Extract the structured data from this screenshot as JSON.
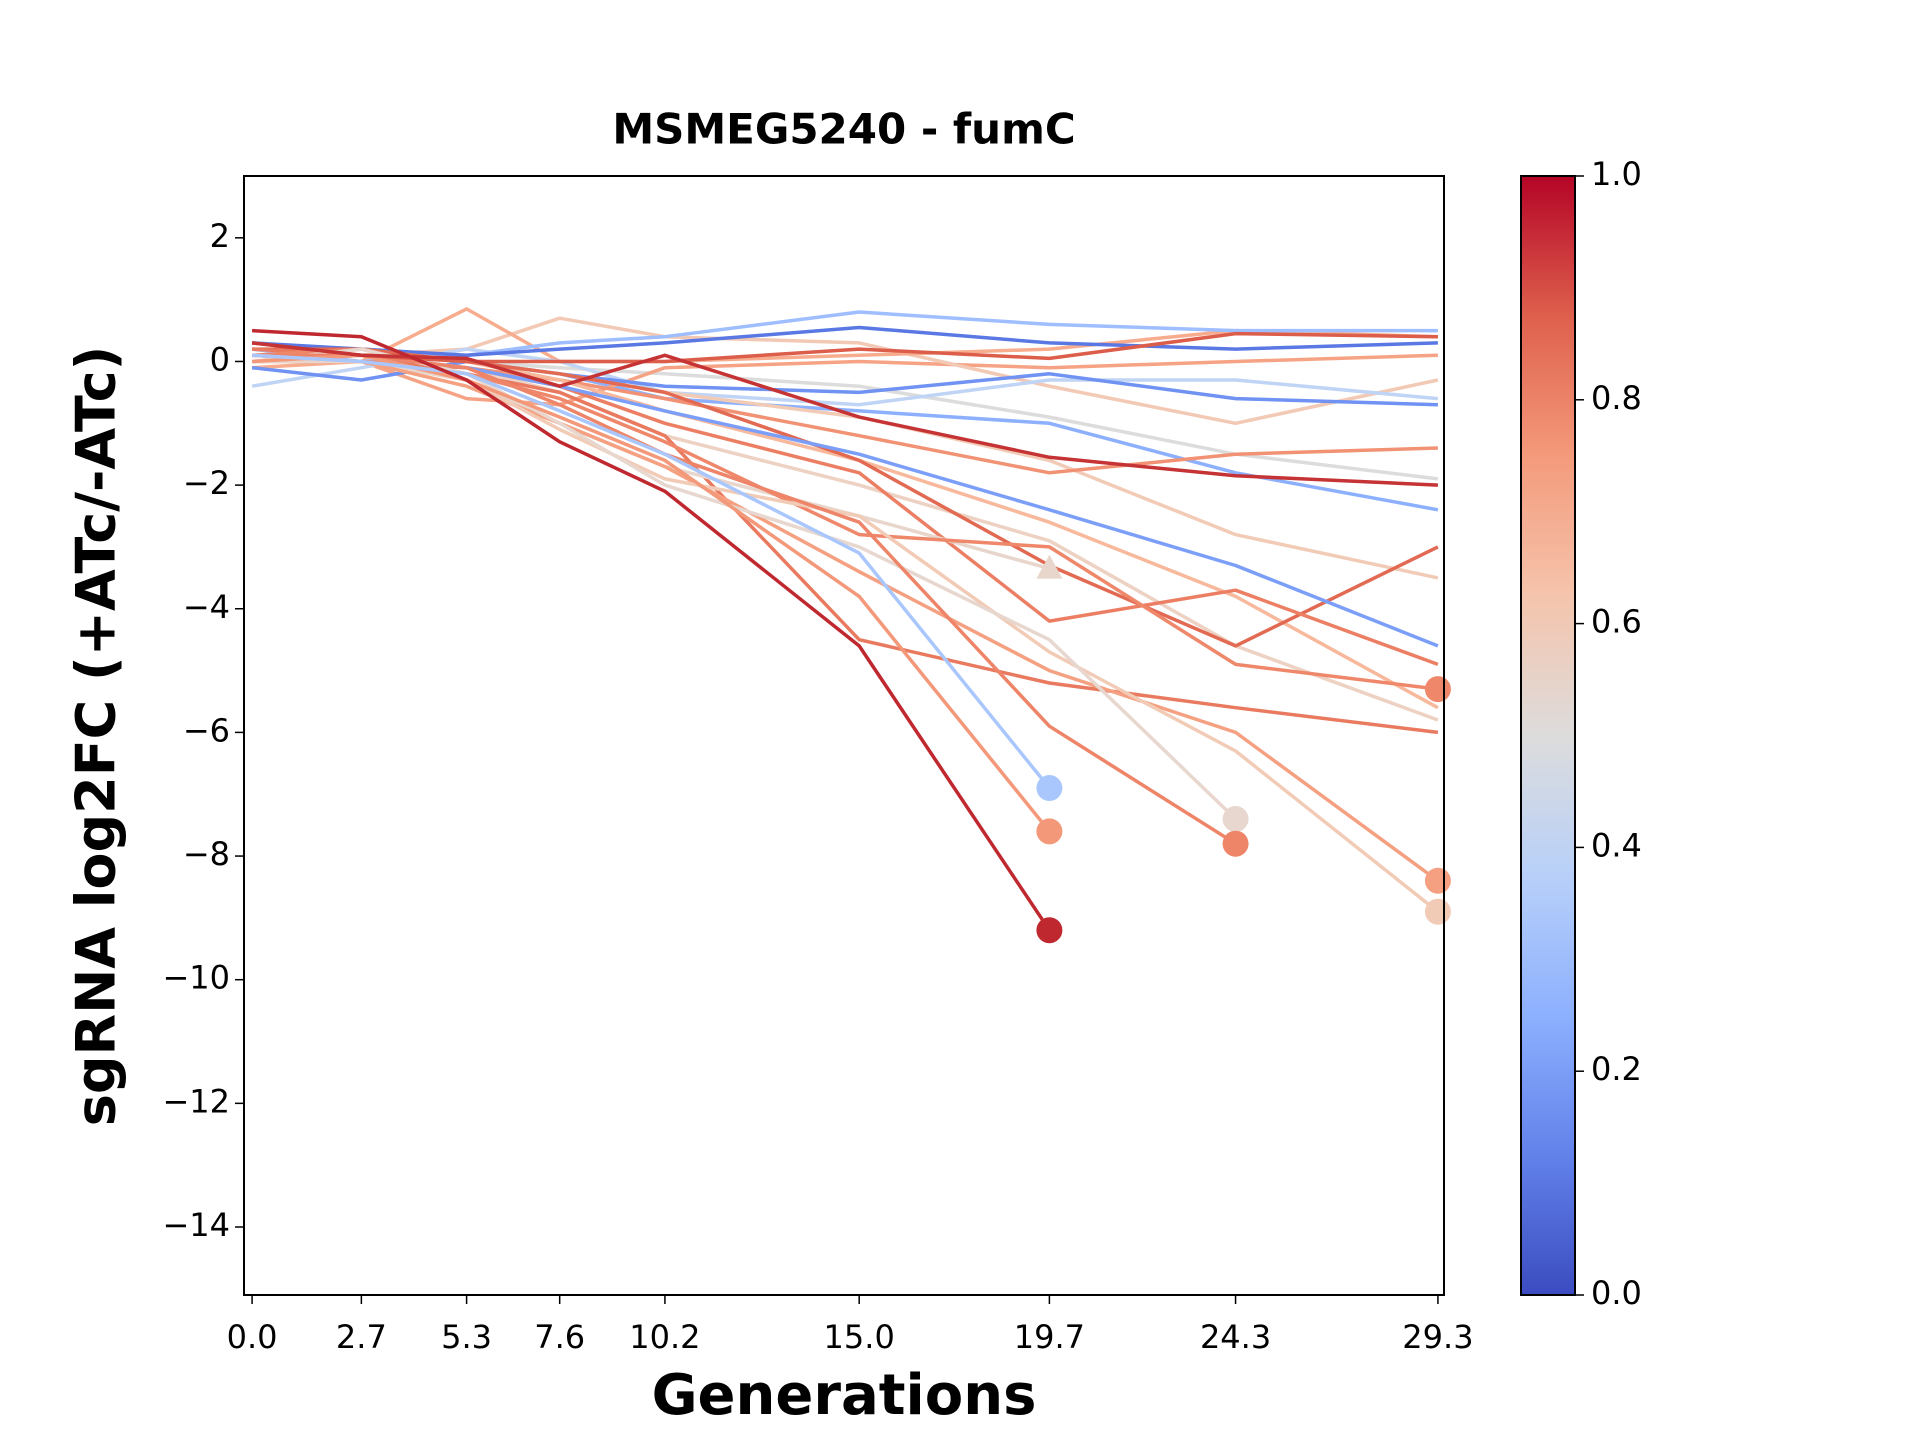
{
  "chart_data": {
    "type": "line",
    "title": "MSMEG5240 - fumC",
    "xlabel": "Generations",
    "ylabel": "sgRNA log2FC (+ATc/-ATc)",
    "x": [
      0,
      2.7,
      5.3,
      7.6,
      10.2,
      15.0,
      19.7,
      24.3,
      29.3
    ],
    "xlim": [
      -0.2,
      29.45
    ],
    "xticks": [
      {
        "value": 0,
        "label": "0.0"
      },
      2.7,
      5.3,
      7.6,
      10.2,
      {
        "value": 15,
        "label": "15.0"
      },
      19.7,
      24.3,
      29.3
    ],
    "ylim": [
      -15.1,
      3
    ],
    "yticks": [
      {
        "value": -14,
        "label": "−14"
      },
      {
        "value": -12,
        "label": "−12"
      },
      {
        "value": -10,
        "label": "−10"
      },
      {
        "value": -8,
        "label": "−8"
      },
      {
        "value": -6,
        "label": "−6"
      },
      {
        "value": -4,
        "label": "−4"
      },
      {
        "value": -2,
        "label": "−2"
      },
      0,
      2
    ],
    "grid": false,
    "series": [
      {
        "color": "#8db0fe",
        "values": [
          0.2,
          0.1,
          0.0,
          -0.2,
          -0.6,
          -0.8,
          -1.0,
          -1.8,
          -2.4
        ]
      },
      {
        "color": "#dddcdc",
        "values": [
          0.1,
          0.2,
          0.0,
          -0.1,
          -0.2,
          -0.4,
          -0.9,
          -1.5,
          -1.9
        ]
      },
      {
        "color": "#f6a385",
        "values": [
          0.1,
          0.0,
          -0.6,
          -0.7,
          -0.1,
          0.0,
          -0.1,
          0.0,
          0.1
        ]
      },
      {
        "color": "#f2c9b4",
        "values": [
          0.0,
          0.1,
          0.2,
          0.7,
          0.4,
          0.3,
          -0.4,
          -1.0,
          -0.3
        ]
      },
      {
        "color": "#f7ac8e",
        "values": [
          -0.1,
          0.0,
          0.85,
          0.0,
          0.0,
          0.1,
          0.2,
          0.5,
          0.4
        ]
      },
      {
        "color": "#c0d4f5",
        "values": [
          -0.4,
          -0.1,
          0.2,
          0.0,
          -0.5,
          -0.7,
          -0.3,
          -0.3,
          -0.6
        ]
      },
      {
        "color": "#9ebeff",
        "values": [
          0.2,
          0.0,
          0.1,
          0.3,
          0.4,
          0.8,
          0.6,
          0.5,
          0.5
        ]
      },
      {
        "color": "#6f92f3",
        "values": [
          -0.1,
          -0.3,
          0.0,
          -0.2,
          -0.4,
          -0.5,
          -0.2,
          -0.6,
          -0.7
        ]
      },
      {
        "color": "#5a78e4",
        "values": [
          0.3,
          0.2,
          0.1,
          0.2,
          0.3,
          0.55,
          0.3,
          0.2,
          0.3
        ]
      },
      {
        "color": "#f2cbb7",
        "values": [
          0.1,
          0.1,
          0.0,
          -0.2,
          -0.5,
          -0.9,
          -1.6,
          -2.8,
          -3.5
        ]
      },
      {
        "color": "#f29274",
        "values": [
          0.0,
          0.0,
          -0.1,
          -0.3,
          -0.6,
          -1.2,
          -1.8,
          -1.5,
          -1.4
        ]
      },
      {
        "color": "#edd1c2",
        "values": [
          0.0,
          0.1,
          -0.1,
          -0.5,
          -1.2,
          -2.0,
          -2.9,
          -4.6,
          -5.8
        ]
      },
      {
        "color": "#f7b89c",
        "values": [
          0.0,
          0.2,
          0.0,
          -0.3,
          -0.8,
          -1.6,
          -2.6,
          -3.8,
          -5.6
        ]
      },
      {
        "color": "#e26952",
        "values": [
          0.2,
          0.2,
          0.0,
          -0.2,
          -0.5,
          -1.6,
          -3.3,
          -4.6,
          -3.0
        ]
      },
      {
        "color": "#ec7f63",
        "values": [
          0.1,
          0.0,
          -0.1,
          -0.4,
          -1.0,
          -1.8,
          -4.2,
          -3.7,
          -4.9
        ]
      },
      {
        "color": "#e97a5f",
        "values": [
          0.2,
          0.1,
          -0.2,
          -0.5,
          -1.2,
          -4.5,
          -5.2,
          -5.6,
          -6.0
        ]
      },
      {
        "color": "#7b9ff9",
        "values": [
          0.0,
          0.1,
          -0.1,
          -0.4,
          -0.8,
          -1.5,
          -2.4,
          -3.3,
          -4.6
        ]
      },
      {
        "color": "#e8d6cc",
        "end_marker": "triangle",
        "values": [
          0.0,
          0.0,
          -0.3,
          -1.0,
          -1.7,
          -2.5,
          -3.35,
          null,
          null
        ]
      },
      {
        "color": "#ef886b",
        "end_marker": "circle",
        "values": [
          0.1,
          0.2,
          -0.2,
          -0.6,
          -1.3,
          -2.8,
          -3.0,
          -4.9,
          -5.3
        ]
      },
      {
        "color": "#f5a081",
        "end_marker": "circle",
        "values": [
          0.1,
          0.0,
          -0.4,
          -1.0,
          -1.7,
          -3.4,
          -5.0,
          -6.0,
          -8.4
        ]
      },
      {
        "color": "#f2cbb7",
        "end_marker": "circle",
        "values": [
          0.0,
          0.1,
          -0.3,
          -1.1,
          -1.9,
          -2.5,
          -4.7,
          -6.3,
          -8.9
        ]
      },
      {
        "color": "#e7d7ce",
        "end_marker": "circle",
        "values": [
          0.0,
          0.2,
          -0.2,
          -1.0,
          -2.0,
          -3.0,
          -4.5,
          -7.4,
          null
        ]
      },
      {
        "color": "#ee8468",
        "end_marker": "circle",
        "values": [
          0.1,
          0.1,
          -0.1,
          -0.7,
          -1.5,
          -2.6,
          -5.9,
          -7.8,
          null
        ]
      },
      {
        "color": "#f4987a",
        "end_marker": "circle",
        "values": [
          0.0,
          0.1,
          -0.3,
          -0.9,
          -1.6,
          -3.8,
          -7.6,
          null,
          null
        ]
      },
      {
        "color": "#aac7fd",
        "end_marker": "circle",
        "values": [
          0.1,
          0.0,
          -0.2,
          -0.8,
          -1.5,
          -3.1,
          -6.9,
          null,
          null
        ]
      },
      {
        "color": "#dc5d4a",
        "values": [
          0.3,
          0.1,
          0.0,
          0.0,
          0.0,
          0.2,
          0.05,
          0.45,
          0.4
        ]
      },
      {
        "color": "#c53334",
        "values": [
          0.3,
          0.1,
          0.05,
          -0.4,
          0.1,
          -0.9,
          -1.55,
          -1.85,
          -2.0
        ]
      },
      {
        "color": "#c0282f",
        "end_marker": "circle",
        "values": [
          0.5,
          0.4,
          -0.3,
          -1.3,
          -2.1,
          -4.6,
          -9.2,
          null,
          null
        ]
      }
    ],
    "colorbar": {
      "lim": [
        0,
        1
      ],
      "ticks": [
        {
          "value": 0,
          "label": "0.0"
        },
        0.2,
        0.4,
        0.6,
        0.8,
        {
          "value": 1,
          "label": "1.0"
        }
      ],
      "colors": [
        "#3b4cc0",
        "#6282ea",
        "#8db0fe",
        "#b8d0f9",
        "#dddcdc",
        "#f5c4ac",
        "#f49a7b",
        "#de604d",
        "#b40426"
      ]
    }
  }
}
